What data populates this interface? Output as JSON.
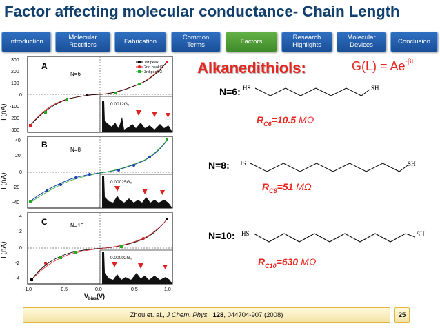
{
  "slide": {
    "title": "Factor affecting molecular conductance- Chain Length",
    "page_number": "25",
    "colors": {
      "title": "#12406e",
      "nav_tab": "#2563b0",
      "nav_active": "#4e9e36",
      "accent_red": "#e8251f"
    }
  },
  "nav": {
    "tabs": [
      {
        "label": "Introduction",
        "active": false
      },
      {
        "label": "Molecular Rectifiers",
        "active": false
      },
      {
        "label": "Fabrication",
        "active": false
      },
      {
        "label": "Common Terms",
        "active": false
      },
      {
        "label": "Factors",
        "active": true
      },
      {
        "label": "Research Highlights",
        "active": false
      },
      {
        "label": "Molecular Devices",
        "active": false
      },
      {
        "label": "Conclusion",
        "active": false
      }
    ]
  },
  "figure": {
    "xlabel_main": "V",
    "xlabel_sub": "bias",
    "xlabel_unit": "(V)",
    "ylabel": "I (nA)",
    "x_ticks": [
      "-1.0",
      "-0.5",
      "0.0",
      "0.5",
      "1.0"
    ],
    "legend": [
      "1st peak",
      "2nd peak/2",
      "3rd peak/3"
    ],
    "panels": [
      {
        "letter": "A",
        "n_label": "N=6",
        "conductance_label": "0.0012G₀",
        "y_ticks": [
          "300",
          "200",
          "100",
          "0",
          "-100",
          "-200",
          "-300"
        ]
      },
      {
        "letter": "B",
        "n_label": "N=8",
        "conductance_label": "0.00025G₀",
        "y_ticks": [
          "40",
          "20",
          "0",
          "-20",
          "-40"
        ]
      },
      {
        "letter": "C",
        "n_label": "N=10",
        "conductance_label": "0.00002G₀",
        "y_ticks": [
          "4",
          "2",
          "0",
          "-2",
          "-4"
        ]
      }
    ]
  },
  "content": {
    "heading": "Alkanedithiols:",
    "formula_base": "G(L) = Ae",
    "formula_exp": "-βL",
    "molecules": [
      {
        "n_label": "N=6:",
        "left_group": "HS",
        "right_group": "SH",
        "resistance_prefix": "R",
        "resistance_sub": "C6",
        "resistance_value": "=10.5",
        "resistance_unit": "MΩ"
      },
      {
        "n_label": "N=8:",
        "left_group": "HS",
        "right_group": "SH",
        "resistance_prefix": "R",
        "resistance_sub": "C8",
        "resistance_value": "=51",
        "resistance_unit": "MΩ"
      },
      {
        "n_label": "N=10:",
        "left_group": "HS",
        "right_group": "SH",
        "resistance_prefix": "R",
        "resistance_sub": "C10",
        "resistance_value": "=630",
        "resistance_unit": "MΩ"
      }
    ]
  },
  "citation": {
    "authors": "Zhou et. al., ",
    "journal": "J Chem. Phys.",
    "sep": ", ",
    "volume": "128",
    "pages": ", 044704-907 (2008)"
  }
}
